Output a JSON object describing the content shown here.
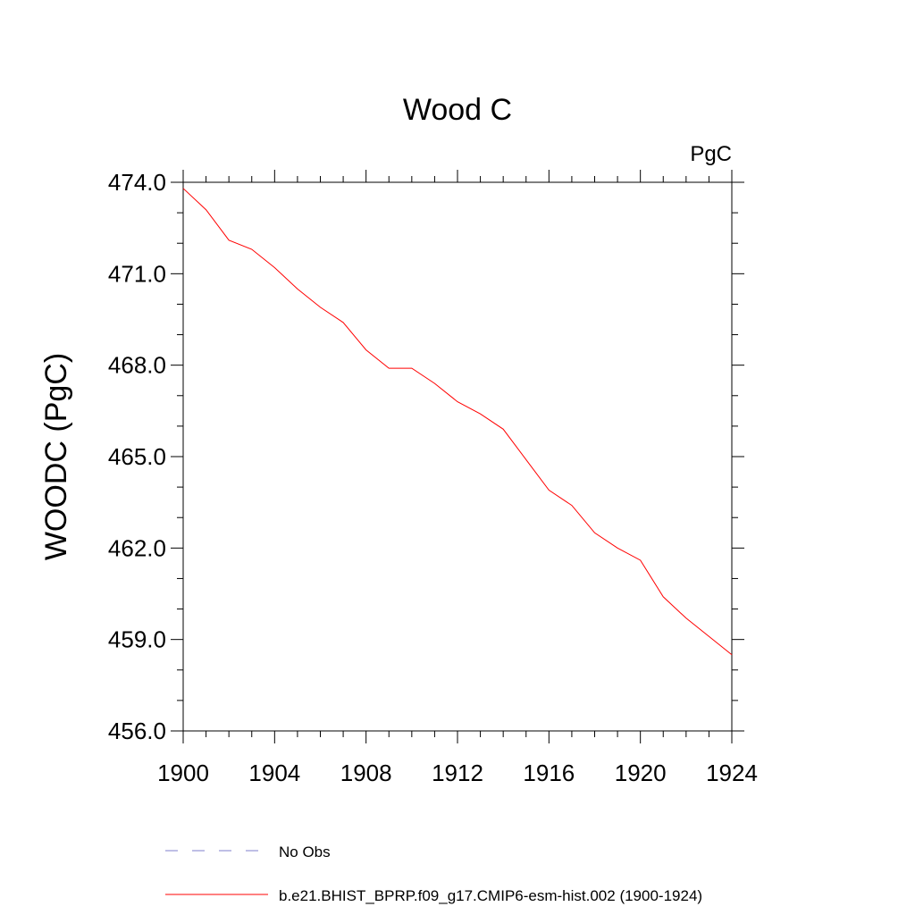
{
  "chart_data": {
    "type": "line",
    "title": "Wood C",
    "units_label": "PgC",
    "xlabel": "",
    "ylabel": "WOODC  (PgC)",
    "xlim": [
      1900,
      1924
    ],
    "ylim": [
      456.0,
      474.0
    ],
    "x_ticks": [
      1900,
      1904,
      1908,
      1912,
      1916,
      1920,
      1924
    ],
    "x_tick_labels": [
      "1900",
      "1904",
      "1908",
      "1912",
      "1916",
      "1920",
      "1924"
    ],
    "y_ticks": [
      456.0,
      459.0,
      462.0,
      465.0,
      468.0,
      471.0,
      474.0
    ],
    "y_tick_labels": [
      "456.0",
      "459.0",
      "462.0",
      "465.0",
      "468.0",
      "471.0",
      "474.0"
    ],
    "x_minor_step": 1,
    "y_minor_step": 1,
    "grid": false,
    "legend_position": "bottom",
    "series": [
      {
        "name": "No Obs",
        "color": "#7f7fcc",
        "dash": "dashed",
        "x": [],
        "values": []
      },
      {
        "name": "b.e21.BHIST_BPRP.f09_g17.CMIP6-esm-hist.002 (1900-1924)",
        "color": "#ff0000",
        "dash": "solid",
        "x": [
          1900,
          1901,
          1902,
          1903,
          1904,
          1905,
          1906,
          1907,
          1908,
          1909,
          1910,
          1911,
          1912,
          1913,
          1914,
          1915,
          1916,
          1917,
          1918,
          1919,
          1920,
          1921,
          1922,
          1923,
          1924
        ],
        "values": [
          473.8,
          473.1,
          472.1,
          471.8,
          471.2,
          470.5,
          469.9,
          469.4,
          468.5,
          467.9,
          467.9,
          467.4,
          466.8,
          466.4,
          465.9,
          464.9,
          463.9,
          463.4,
          462.5,
          462.0,
          461.6,
          460.4,
          459.7,
          459.1,
          458.5
        ]
      }
    ]
  }
}
